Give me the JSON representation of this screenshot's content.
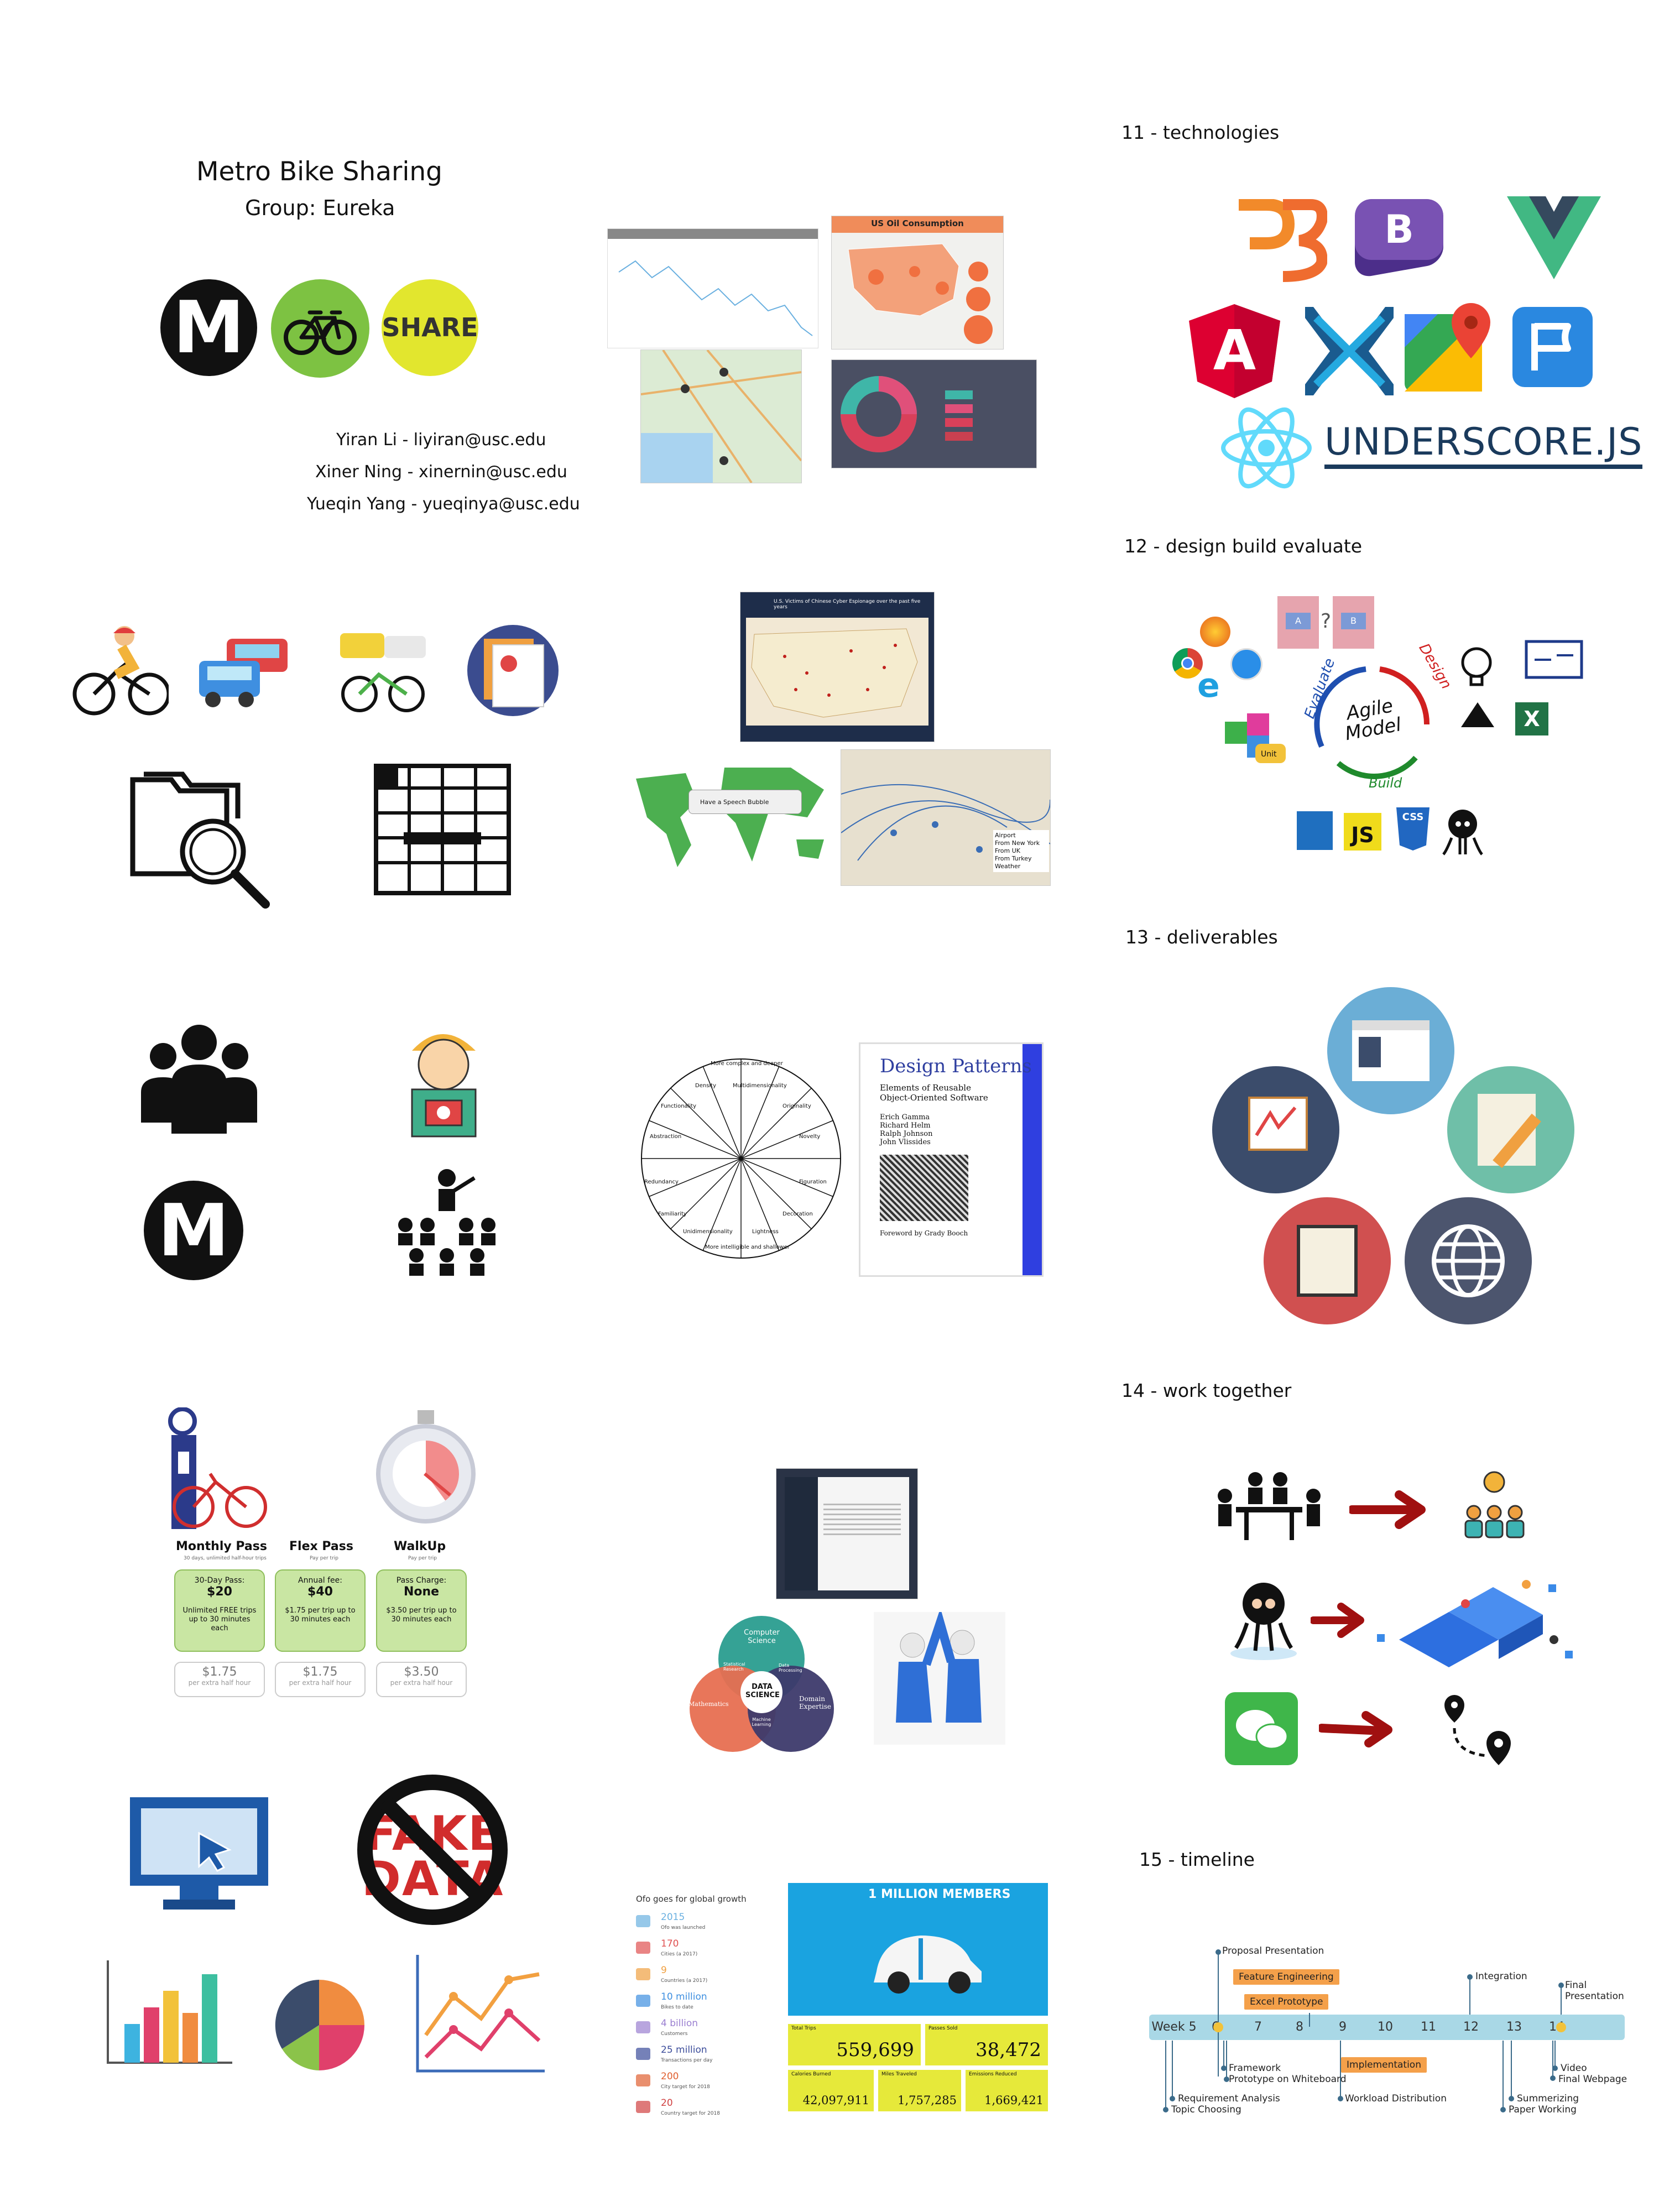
{
  "title_block": {
    "title": "Metro Bike Sharing",
    "group": "Group: Eureka",
    "logo_m": "M",
    "logo_share": "SHARE",
    "members": [
      "Yiran Li - liyiran@usc.edu",
      "Xiner Ning - xinernin@usc.edu",
      "Yueqin Yang - yueqinya@usc.edu"
    ]
  },
  "sections": {
    "technologies": "11 - technologies",
    "design": "12 - design build evaluate",
    "deliverables": "13 - deliverables",
    "work": "14 - work together",
    "timeline": "15 - timeline"
  },
  "thumbs": {
    "oil": "US Oil Consumption",
    "cyber": "U.S. Victims of Chinese Cyber Espionage over the past five years",
    "bubble": "Have a Speech Bubble",
    "airport_legend": [
      "Airport",
      "From New York",
      "From UK",
      "From Turkey",
      "Weather"
    ],
    "design_patterns": {
      "title": "Design Patterns",
      "subtitle": "Elements of Reusable Object-Oriented Software",
      "authors": [
        "Erich Gamma",
        "Richard Helm",
        "Ralph Johnson",
        "John Vlissides"
      ],
      "foreword": "Foreword by Grady Booch"
    },
    "wheel_labels": [
      "More complex and deeper",
      "Density",
      "Multidimensionality",
      "Originality",
      "Novelty",
      "Figuration",
      "Decoration",
      "Lightness",
      "More intelligible and shallower",
      "Unidimensionality",
      "Familiarity",
      "Redundancy",
      "Abstraction",
      "Functionality"
    ],
    "venn": [
      "Computer Science",
      "Mathematics",
      "Domain Expertise",
      "DATA SCIENCE",
      "Statistical Research",
      "Data Processing",
      "Machine Learning"
    ],
    "underscore": "UNDERSCORE.JS",
    "agile": [
      "Evaluate",
      "Agile Model",
      "Design",
      "Build"
    ],
    "tech_letters": {
      "angular": "A",
      "bootstrap": "B",
      "js": "JS",
      "css": "CSS"
    }
  },
  "pricing": {
    "plans": [
      {
        "name": "Monthly Pass",
        "sub": "30 days, unlimited half-hour trips",
        "top_label": "30-Day Pass:",
        "top_price": "$20",
        "mid": "Unlimited FREE trips up to 30 minutes each",
        "extra": "$1.75",
        "extra_label": "per extra half hour"
      },
      {
        "name": "Flex Pass",
        "sub": "Pay per trip",
        "top_label": "Annual fee:",
        "top_price": "$40",
        "mid": "$1.75 per trip up to 30 minutes each",
        "extra": "$1.75",
        "extra_label": "per extra half hour"
      },
      {
        "name": "WalkUp",
        "sub": "Pay per trip",
        "top_label": "Pass Charge:",
        "top_price": "None",
        "mid": "$3.50 per trip up to 30 minutes each",
        "extra": "$3.50",
        "extra_label": "per extra half hour"
      }
    ]
  },
  "fake_data": "FAKE DATA",
  "ofo": {
    "title": "Ofo goes for global growth",
    "rows": [
      {
        "value": "2015",
        "label": "Ofo was launched"
      },
      {
        "value": "170",
        "label": "Cities (a 2017)"
      },
      {
        "value": "9",
        "label": "Countries (a 2017)"
      },
      {
        "value": "10 million",
        "label": "Bikes to date"
      },
      {
        "value": "4 billion",
        "label": "Customers"
      },
      {
        "value": "25 million",
        "label": "Transactions per day"
      },
      {
        "value": "200",
        "label": "City target for 2018"
      },
      {
        "value": "20",
        "label": "Country target for 2018"
      }
    ]
  },
  "members_infographic": {
    "banner": "1 MILLION MEMBERS",
    "stats": [
      {
        "label": "Total Trips",
        "value": "559,699"
      },
      {
        "label": "Passes Sold",
        "value": "38,472"
      },
      {
        "label": "Calories Burned",
        "value": "42,097,911"
      },
      {
        "label": "Miles Traveled",
        "value": "1,757,285"
      },
      {
        "label": "Emissions Reduced",
        "value": "1,669,421"
      }
    ]
  },
  "timeline": {
    "weeks": [
      "Week 5",
      "6",
      "7",
      "8",
      "9",
      "10",
      "11",
      "12",
      "13",
      "14"
    ],
    "top_labels": [
      "Proposal Presentation",
      "Integration",
      "Final Presentation"
    ],
    "boxes": [
      "Feature Engineering",
      "Excel Prototype",
      "Implementation"
    ],
    "bottom_labels": [
      "Framework",
      "Prototype on Whiteboard",
      "Requirement Analysis",
      "Topic Choosing",
      "Workload Distribution",
      "Summerizing",
      "Paper Working",
      "Video",
      "Final Webpage"
    ]
  },
  "colors": {
    "metro_black": "#111111",
    "bike_green": "#7dc242",
    "share_yellow": "#e2e62e",
    "timeline_blue": "#a9d8e6",
    "timeline_orange": "#f4a04a",
    "arrow_red": "#a01010"
  }
}
